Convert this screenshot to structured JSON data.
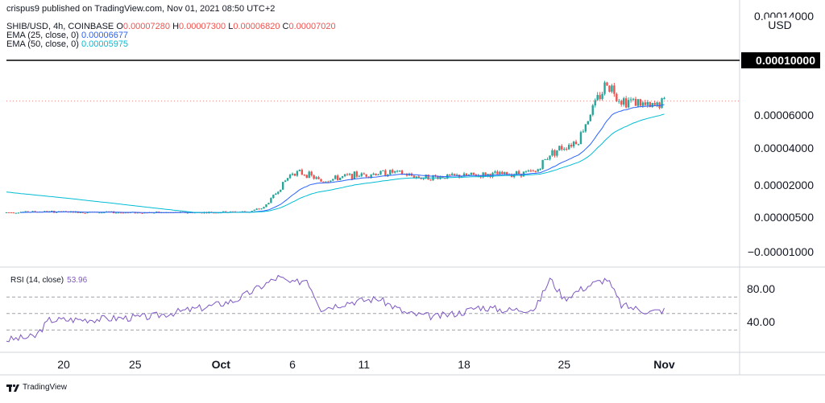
{
  "header": {
    "published": "crispus9 published on TradingView.com, Nov 01, 2021 08:50 UTC+2",
    "symbol_line": "SHIB/USD, 4h, COINBASE",
    "ohlc": [
      {
        "k": "O",
        "v": "0.00007280"
      },
      {
        "k": "H",
        "v": "0.00007300"
      },
      {
        "k": "L",
        "v": "0.00006820"
      },
      {
        "k": "C",
        "v": "0.00007020"
      }
    ],
    "ema25_label": "EMA (25, close, 0)",
    "ema25_value": "0.00006677",
    "ema50_label": "EMA (50, close, 0)",
    "ema50_value": "0.00005975"
  },
  "price_axis": {
    "currency": "USD",
    "ticks": [
      "0.00014000",
      "0.00006000",
      "0.00004000",
      "0.00002000",
      "0.00000500",
      "−0.00001000"
    ],
    "level_label": "0.00010000"
  },
  "rsi": {
    "label": "RSI (14, close)",
    "value": "53.96",
    "ticks": [
      "80.00",
      "40.00"
    ]
  },
  "time_axis": {
    "ticks": [
      "20",
      "25",
      "Oct",
      "6",
      "11",
      "18",
      "25",
      "Nov"
    ]
  },
  "brand": "TradingView",
  "colors": {
    "up": "#26a69a",
    "down": "#ef5350",
    "ema25": "#2962ff",
    "ema50": "#00bcd4",
    "rsi": "#7e57c2",
    "level": "#000000"
  },
  "chart_data": [
    {
      "type": "candlestick",
      "symbol": "SHIB/USD",
      "interval": "4h",
      "exchange": "COINBASE",
      "x_ticks": [
        "20",
        "25",
        "Oct",
        "6",
        "11",
        "18",
        "25",
        "Nov"
      ],
      "x_range": [
        "2021-09-16",
        "2021-11-03"
      ],
      "y_scale": "nonlinear (log-like)",
      "horizontal_line": 0.0001,
      "last_close": 7.02e-05,
      "series": [
        {
          "name": "EMA (25, close, 0)",
          "last": 6.677e-05
        },
        {
          "name": "EMA (50, close, 0)",
          "last": 5.975e-05
        }
      ],
      "close_path": [
        {
          "x": "2021-09-16",
          "y": 7.2e-06
        },
        {
          "x": "2021-09-18",
          "y": 7.6e-06
        },
        {
          "x": "2021-09-22",
          "y": 7.3e-06
        },
        {
          "x": "2021-09-26",
          "y": 7.1e-06
        },
        {
          "x": "2021-09-30",
          "y": 7.2e-06
        },
        {
          "x": "2021-10-03",
          "y": 7.6e-06
        },
        {
          "x": "2021-10-04",
          "y": 9.5e-06
        },
        {
          "x": "2021-10-05",
          "y": 1.75e-05
        },
        {
          "x": "2021-10-06",
          "y": 2.7e-05
        },
        {
          "x": "2021-10-07",
          "y": 2.6e-05
        },
        {
          "x": "2021-10-08",
          "y": 2.2e-05
        },
        {
          "x": "2021-10-10",
          "y": 2.5e-05
        },
        {
          "x": "2021-10-13",
          "y": 2.7e-05
        },
        {
          "x": "2021-10-15",
          "y": 2.4e-05
        },
        {
          "x": "2021-10-18",
          "y": 2.5e-05
        },
        {
          "x": "2021-10-21",
          "y": 2.6e-05
        },
        {
          "x": "2021-10-23",
          "y": 2.7e-05
        },
        {
          "x": "2021-10-24",
          "y": 3.7e-05
        },
        {
          "x": "2021-10-26",
          "y": 4.5e-05
        },
        {
          "x": "2021-10-27",
          "y": 6.5e-05
        },
        {
          "x": "2021-10-28",
          "y": 8.4e-05
        },
        {
          "x": "2021-10-29",
          "y": 7.1e-05
        },
        {
          "x": "2021-10-30",
          "y": 7e-05
        },
        {
          "x": "2021-10-31",
          "y": 6.5e-05
        },
        {
          "x": "2021-11-01",
          "y": 7.02e-05
        }
      ]
    },
    {
      "type": "line",
      "name": "RSI (14, close)",
      "last": 53.96,
      "y_ticks": [
        80,
        40
      ],
      "bands": [
        70,
        50,
        30
      ],
      "x_range": [
        "2021-09-16",
        "2021-11-03"
      ],
      "series": [
        {
          "name": "RSI",
          "points": [
            {
              "x": "2021-09-16",
              "y": 18
            },
            {
              "x": "2021-09-18",
              "y": 22
            },
            {
              "x": "2021-09-19",
              "y": 42
            },
            {
              "x": "2021-09-22",
              "y": 43
            },
            {
              "x": "2021-09-26",
              "y": 46
            },
            {
              "x": "2021-09-30",
              "y": 58
            },
            {
              "x": "2021-10-02",
              "y": 66
            },
            {
              "x": "2021-10-05",
              "y": 94
            },
            {
              "x": "2021-10-06",
              "y": 86
            },
            {
              "x": "2021-10-07",
              "y": 92
            },
            {
              "x": "2021-10-08",
              "y": 56
            },
            {
              "x": "2021-10-10",
              "y": 64
            },
            {
              "x": "2021-10-12",
              "y": 68
            },
            {
              "x": "2021-10-14",
              "y": 50
            },
            {
              "x": "2021-10-16",
              "y": 46
            },
            {
              "x": "2021-10-18",
              "y": 52
            },
            {
              "x": "2021-10-19",
              "y": 58
            },
            {
              "x": "2021-10-21",
              "y": 54
            },
            {
              "x": "2021-10-23",
              "y": 56
            },
            {
              "x": "2021-10-24",
              "y": 92
            },
            {
              "x": "2021-10-25",
              "y": 68
            },
            {
              "x": "2021-10-26",
              "y": 78
            },
            {
              "x": "2021-10-27",
              "y": 86
            },
            {
              "x": "2021-10-28",
              "y": 92
            },
            {
              "x": "2021-10-29",
              "y": 60
            },
            {
              "x": "2021-10-31",
              "y": 52
            },
            {
              "x": "2021-11-01",
              "y": 54
            }
          ]
        }
      ]
    }
  ]
}
